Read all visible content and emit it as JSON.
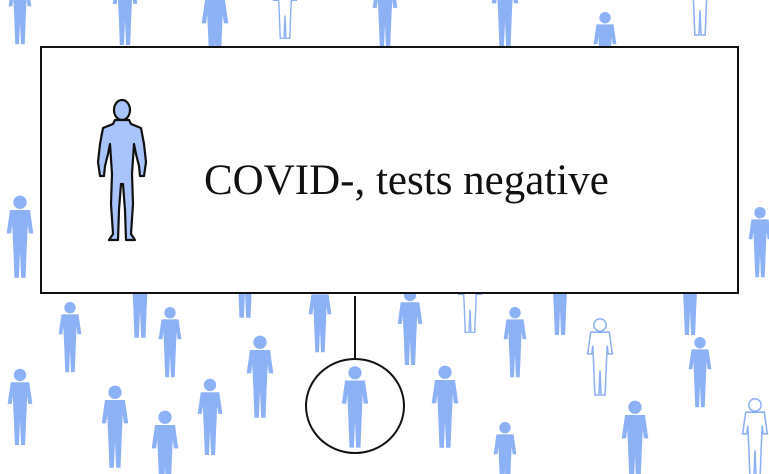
{
  "label": {
    "text": "COVID-, tests negative"
  },
  "colors": {
    "figure_fill": "#a9c4fb",
    "crowd_fill": "#8db1f5",
    "crowd_faded": "#c9daf9",
    "stroke": "#111111"
  },
  "icons": {
    "person": "person-silhouette-icon",
    "wheelchair": "wheelchair-person-icon"
  }
}
